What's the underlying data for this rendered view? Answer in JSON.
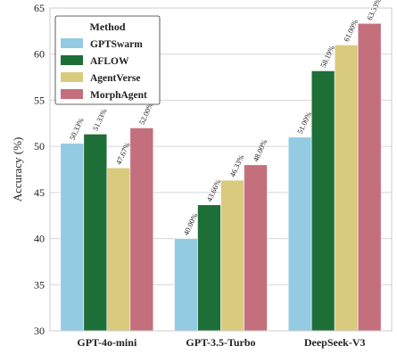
{
  "chart_data": {
    "type": "bar",
    "ylabel": "Accuracy (%)",
    "xlabel": "",
    "ylim": [
      30,
      65
    ],
    "yticks": [
      30,
      35,
      40,
      45,
      50,
      55,
      60,
      65
    ],
    "grid": true,
    "legend_position": "top-left",
    "legend_title": "Method",
    "categories": [
      "GPT-4o-mini",
      "GPT-3.5-Turbo",
      "DeepSeek-V3"
    ],
    "series": [
      {
        "name": "GPTSwarm",
        "color": "#93cbe3",
        "values": [
          50.33,
          40.0,
          51.0
        ],
        "labels": [
          "50.33%",
          "40.00%",
          "51.00%"
        ]
      },
      {
        "name": "AFLOW",
        "color": "#1e6e38",
        "values": [
          51.33,
          43.66,
          58.19
        ],
        "labels": [
          "51.33%",
          "43.66%",
          "58.19%"
        ]
      },
      {
        "name": "AgentVerse",
        "color": "#d9cb7e",
        "values": [
          47.67,
          46.33,
          61.0
        ],
        "labels": [
          "47.67%",
          "46.33%",
          "61.00%"
        ]
      },
      {
        "name": "MorphAgent",
        "color": "#c46f7c",
        "values": [
          52.0,
          48.0,
          63.33
        ],
        "labels": [
          "52.00%",
          "48.00%",
          "63.33%"
        ]
      }
    ]
  }
}
